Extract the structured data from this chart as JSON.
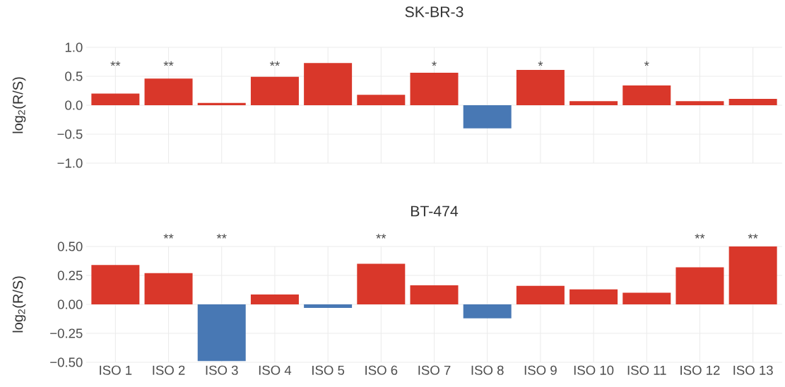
{
  "chart_data": [
    {
      "type": "bar",
      "title": "SK-BR-3",
      "ylabel": "log$_{2}$(R/S)",
      "categories": [
        null,
        null,
        null,
        null,
        null,
        null,
        null,
        null,
        null,
        null,
        null,
        null,
        null
      ],
      "values": [
        0.2,
        0.46,
        0.04,
        0.49,
        0.73,
        0.18,
        0.56,
        -0.4,
        0.61,
        0.07,
        0.34,
        0.07,
        0.11
      ],
      "colors": [
        "#d9372a",
        "#d9372a",
        "#d9372a",
        "#d9372a",
        "#d9372a",
        "#d9372a",
        "#d9372a",
        "#4878b4",
        "#d9372a",
        "#d9372a",
        "#d9372a",
        "#d9372a",
        "#d9372a"
      ],
      "ylim": [
        -1.0,
        1.0
      ],
      "yticks": [
        {
          "value": -1.0,
          "label": "−1.0"
        },
        {
          "value": -0.5,
          "label": "−0.5"
        },
        {
          "value": 0,
          "label": "0.0"
        },
        {
          "value": 0.5,
          "label": "0.5"
        },
        {
          "value": 1.0,
          "label": "1.0"
        }
      ],
      "grid": true,
      "tick_labels": "y",
      "annotations": [
        "**",
        "**",
        "**",
        "*",
        "*",
        "*"
      ]
    },
    {
      "type": "bar",
      "title": "BT-474",
      "ylabel": "log$_{2}$(R/S)",
      "categories": [
        "ISO 1",
        "ISO 2",
        "ISO 3",
        "ISO 4",
        "ISO 5",
        "ISO 6",
        "ISO 7",
        "ISO 8",
        "ISO 9",
        "ISO 10",
        "ISO 11",
        "ISO 12",
        "ISO 13"
      ],
      "values": [
        0.34,
        0.27,
        -0.49,
        0.085,
        -0.03,
        0.35,
        0.165,
        -0.12,
        0.16,
        0.13,
        0.1,
        0.32,
        0.5
      ],
      "colors": [
        "#d9372a",
        "#d9372a",
        "#4878b4",
        "#d9372a",
        "#4878b4",
        "#d9372a",
        "#d9372a",
        "#4878b4",
        "#d9372a",
        "#d9372a",
        "#d9372a",
        "#d9372a",
        "#d9372a"
      ],
      "ylim": [
        -0.5,
        0.5
      ],
      "yticks": [
        {
          "value": -0.5,
          "label": "−0.50"
        },
        {
          "value": -0.25,
          "label": "−0.25"
        },
        {
          "value": 0,
          "label": "0.00"
        },
        {
          "value": 0.25,
          "label": "0.25"
        },
        {
          "value": 0.5,
          "label": "0.50"
        }
      ],
      "grid": true,
      "annotations": [
        "**",
        "**",
        "**",
        "**",
        "**"
      ]
    }
  ]
}
